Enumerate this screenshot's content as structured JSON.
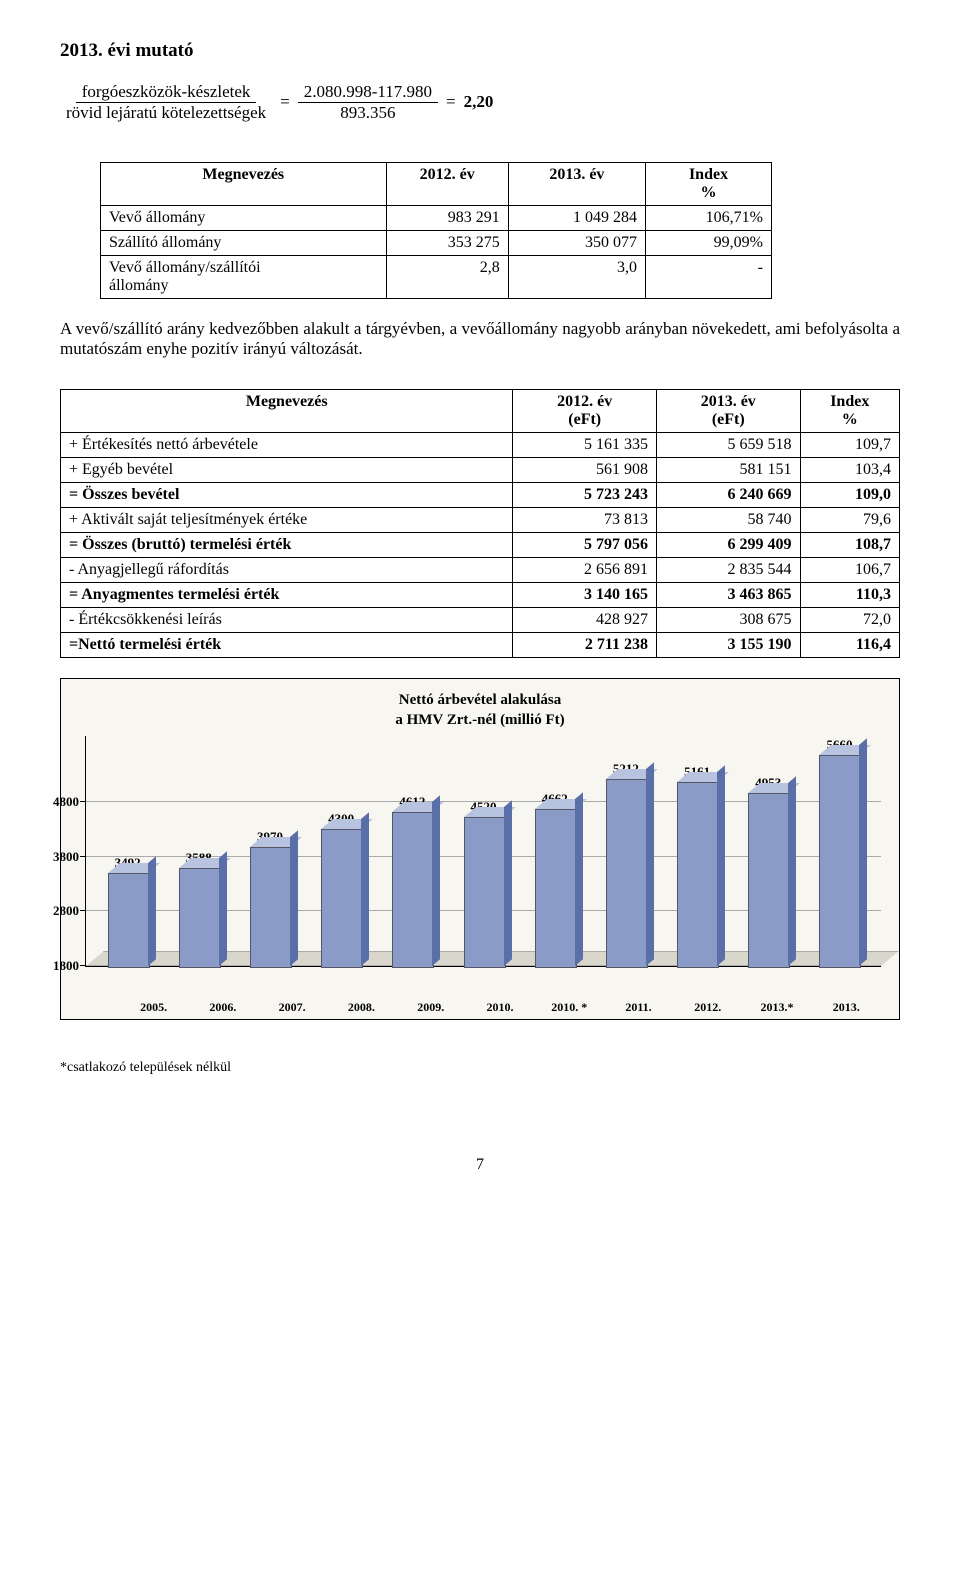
{
  "section_heading": "2013. évi mutató",
  "formula": {
    "numerator_label": "forgóeszközök-készletek",
    "denominator_label": "rövid lejáratú kötelezettségek",
    "eq1": "=",
    "numerator_value": "2.080.998-117.980",
    "denominator_value": "893.356",
    "eq2": "=",
    "result": "2,20"
  },
  "table1": {
    "headers": [
      "Megnevezés",
      "2012. év",
      "2013. év",
      "Index\n%"
    ],
    "rows": [
      [
        "Vevő állomány",
        "983 291",
        "1 049 284",
        "106,71%"
      ],
      [
        "Szállító állomány",
        "353 275",
        "350 077",
        "99,09%"
      ],
      [
        "Vevő állomány/szállítói\nállomány",
        "2,8",
        "3,0",
        "-"
      ]
    ]
  },
  "paragraph1": "A vevő/szállító arány kedvezőbben alakult a tárgyévben, a vevőállomány nagyobb arányban növekedett, ami befolyásolta a mutatószám enyhe pozitív irányú változását.",
  "table2": {
    "headers": [
      "Megnevezés",
      "2012. év\n(eFt)",
      "2013. év\n(eFt)",
      "Index\n%"
    ],
    "rows": [
      {
        "cells": [
          "+ Értékesítés nettó árbevétele",
          "5 161 335",
          "5 659 518",
          "109,7"
        ],
        "bold": false
      },
      {
        "cells": [
          "+ Egyéb bevétel",
          "561 908",
          "581 151",
          "103,4"
        ],
        "bold": false
      },
      {
        "cells": [
          "= Összes bevétel",
          "5 723 243",
          "6 240 669",
          "109,0"
        ],
        "bold": true
      },
      {
        "cells": [
          "+ Aktivált saját teljesítmények értéke",
          "73 813",
          "58 740",
          "79,6"
        ],
        "bold": false
      },
      {
        "cells": [
          "= Összes (bruttó) termelési érték",
          "5 797 056",
          "6 299 409",
          "108,7"
        ],
        "bold": true
      },
      {
        "cells": [
          "- Anyagjellegű ráfordítás",
          "2 656 891",
          "2 835 544",
          "106,7"
        ],
        "bold": false
      },
      {
        "cells": [
          "= Anyagmentes termelési érték",
          "3 140 165",
          "3 463 865",
          "110,3"
        ],
        "bold": true
      },
      {
        "cells": [
          "- Értékcsökkenési leírás",
          "428 927",
          "308 675",
          "72,0"
        ],
        "bold": false
      },
      {
        "cells": [
          "=Nettó termelési érték",
          "2 711 238",
          "3 155 190",
          "116,4"
        ],
        "bold": true
      }
    ]
  },
  "chart": {
    "title_line1": "Nettó árbevétel alakulása",
    "title_line2": "a HMV Zrt.-nél (millió Ft)",
    "y_ticks": [
      4800,
      3800,
      2800,
      1800
    ],
    "y_min": 1800,
    "y_max": 6000,
    "categories": [
      "2005.",
      "2006.",
      "2007.",
      "2008.",
      "2009.",
      "2010.",
      "2010. *",
      "2011.",
      "2012.",
      "2013.*",
      "2013."
    ],
    "values": [
      3492,
      3588,
      3970,
      4300,
      4612,
      4520,
      4662,
      5212,
      5161,
      4953,
      5660
    ],
    "bar_front_color": "#8a9bc7",
    "bar_side_color": "#5a6fa8",
    "bar_top_color": "#b8c3e0",
    "background_color": "#f7f6f1"
  },
  "footnote": "*csatlakozó települések nélkül",
  "page_number": "7"
}
